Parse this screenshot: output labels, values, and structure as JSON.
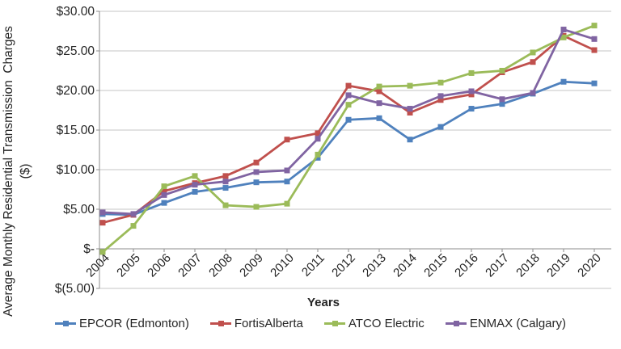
{
  "chart_data": {
    "type": "line",
    "title": "",
    "xlabel": "Years",
    "ylabel": "Average Monthly Residential Transmission  Charges",
    "ylabel_unit": "($)",
    "categories": [
      "2004",
      "2005",
      "2006",
      "2007",
      "2008",
      "2009",
      "2010",
      "2011",
      "2012",
      "2013",
      "2014",
      "2015",
      "2016",
      "2017",
      "2018",
      "2019",
      "2020"
    ],
    "series": [
      {
        "name": "EPCOR (Edmonton)",
        "color": "#4F81BD",
        "values": [
          4.4,
          4.3,
          5.8,
          7.2,
          7.7,
          8.4,
          8.5,
          11.5,
          16.3,
          16.5,
          13.8,
          15.4,
          17.7,
          18.3,
          19.6,
          21.1,
          20.9
        ]
      },
      {
        "name": "FortisAlberta",
        "color": "#C0504D",
        "values": [
          3.3,
          4.3,
          7.3,
          8.3,
          9.2,
          10.9,
          13.8,
          14.6,
          20.6,
          19.9,
          17.2,
          18.8,
          19.5,
          22.3,
          23.6,
          26.9,
          25.1
        ]
      },
      {
        "name": "ATCO Electric",
        "color": "#9BBB59",
        "values": [
          -0.4,
          2.9,
          7.9,
          9.2,
          5.5,
          5.3,
          5.7,
          11.9,
          18.2,
          20.5,
          20.6,
          21.0,
          22.2,
          22.5,
          24.8,
          26.7,
          28.2
        ]
      },
      {
        "name": "ENMAX (Calgary)",
        "color": "#8064A2",
        "values": [
          4.6,
          4.4,
          6.8,
          8.1,
          8.5,
          9.7,
          9.9,
          13.9,
          19.4,
          18.4,
          17.7,
          19.3,
          19.9,
          18.9,
          19.7,
          27.7,
          26.5
        ]
      }
    ],
    "y_axis": {
      "min": -5,
      "max": 30,
      "step": 5,
      "tick_labels": [
        "$30.00",
        "$25.00",
        "$20.00",
        "$15.00",
        "$10.00",
        "$5.00",
        "$-",
        "$(5.00)"
      ]
    },
    "grid": true,
    "legend_position": "bottom",
    "colors": {
      "gridline": "#C6C6C6",
      "axis": "#8C8C8C",
      "text": "#262626",
      "background": "#FFFFFF"
    }
  }
}
